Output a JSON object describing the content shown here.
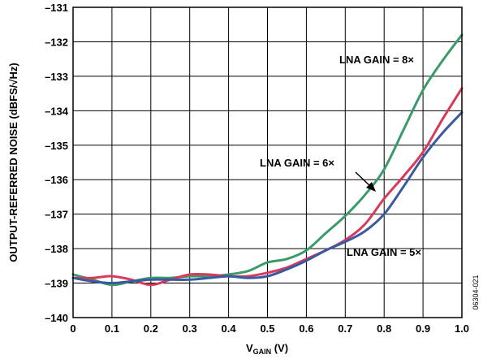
{
  "chart_data": {
    "type": "line",
    "xlabel_main": "V",
    "xlabel_sub": "GAIN",
    "xlabel_tail": " (V)",
    "ylabel": "OUTPUT-REFERRED NOISE (dBFS/√Hz)",
    "xlim": [
      0,
      1.0
    ],
    "ylim": [
      -140,
      -131
    ],
    "x_ticks": [
      0,
      0.1,
      0.2,
      0.3,
      0.4,
      0.5,
      0.6,
      0.7,
      0.8,
      0.9,
      1.0
    ],
    "x_tick_labels": [
      "0",
      "0.1",
      "0.2",
      "0.3",
      "0.4",
      "0.5",
      "0.6",
      "0.7",
      "0.8",
      "0.9",
      "1.0"
    ],
    "y_ticks": [
      -140,
      -139,
      -138,
      -137,
      -136,
      -135,
      -134,
      -133,
      -132,
      -131
    ],
    "y_tick_labels": [
      "–140",
      "–139",
      "–138",
      "–137",
      "–136",
      "–135",
      "–134",
      "–133",
      "–132",
      "–131"
    ],
    "grid": true,
    "series": [
      {
        "name": "LNA GAIN = 8×",
        "color": "#3a9a6a",
        "x": [
          0,
          0.05,
          0.1,
          0.15,
          0.2,
          0.25,
          0.3,
          0.35,
          0.4,
          0.45,
          0.5,
          0.55,
          0.6,
          0.65,
          0.7,
          0.75,
          0.8,
          0.85,
          0.9,
          0.95,
          1.0
        ],
        "y": [
          -138.75,
          -138.9,
          -139.05,
          -138.95,
          -138.85,
          -138.85,
          -138.8,
          -138.8,
          -138.75,
          -138.65,
          -138.4,
          -138.3,
          -138.05,
          -137.55,
          -137.05,
          -136.45,
          -135.7,
          -134.55,
          -133.4,
          -132.55,
          -131.8
        ]
      },
      {
        "name": "LNA GAIN = 6×",
        "color": "#d93a5a",
        "x": [
          0,
          0.05,
          0.1,
          0.15,
          0.2,
          0.25,
          0.3,
          0.35,
          0.4,
          0.45,
          0.5,
          0.55,
          0.6,
          0.65,
          0.7,
          0.75,
          0.8,
          0.85,
          0.9,
          0.95,
          1.0
        ],
        "y": [
          -138.85,
          -138.85,
          -138.8,
          -138.9,
          -139.05,
          -138.9,
          -138.75,
          -138.75,
          -138.8,
          -138.8,
          -138.7,
          -138.55,
          -138.3,
          -138.05,
          -137.75,
          -137.3,
          -136.55,
          -135.9,
          -135.2,
          -134.25,
          -133.35
        ]
      },
      {
        "name": "LNA GAIN = 5×",
        "color": "#3a5aa0",
        "x": [
          0,
          0.05,
          0.1,
          0.15,
          0.2,
          0.25,
          0.3,
          0.35,
          0.4,
          0.45,
          0.5,
          0.55,
          0.6,
          0.65,
          0.7,
          0.75,
          0.8,
          0.85,
          0.9,
          0.95,
          1.0
        ],
        "y": [
          -138.85,
          -138.95,
          -139.0,
          -138.95,
          -138.9,
          -138.9,
          -138.9,
          -138.85,
          -138.8,
          -138.85,
          -138.8,
          -138.6,
          -138.35,
          -138.05,
          -137.8,
          -137.5,
          -137.0,
          -136.2,
          -135.35,
          -134.65,
          -134.05
        ]
      }
    ],
    "annotations": [
      {
        "text": "LNA GAIN = 8×"
      },
      {
        "text": "LNA GAIN = 6×"
      },
      {
        "text": "LNA GAIN = 5×"
      }
    ],
    "figure_id": "06304-021"
  }
}
